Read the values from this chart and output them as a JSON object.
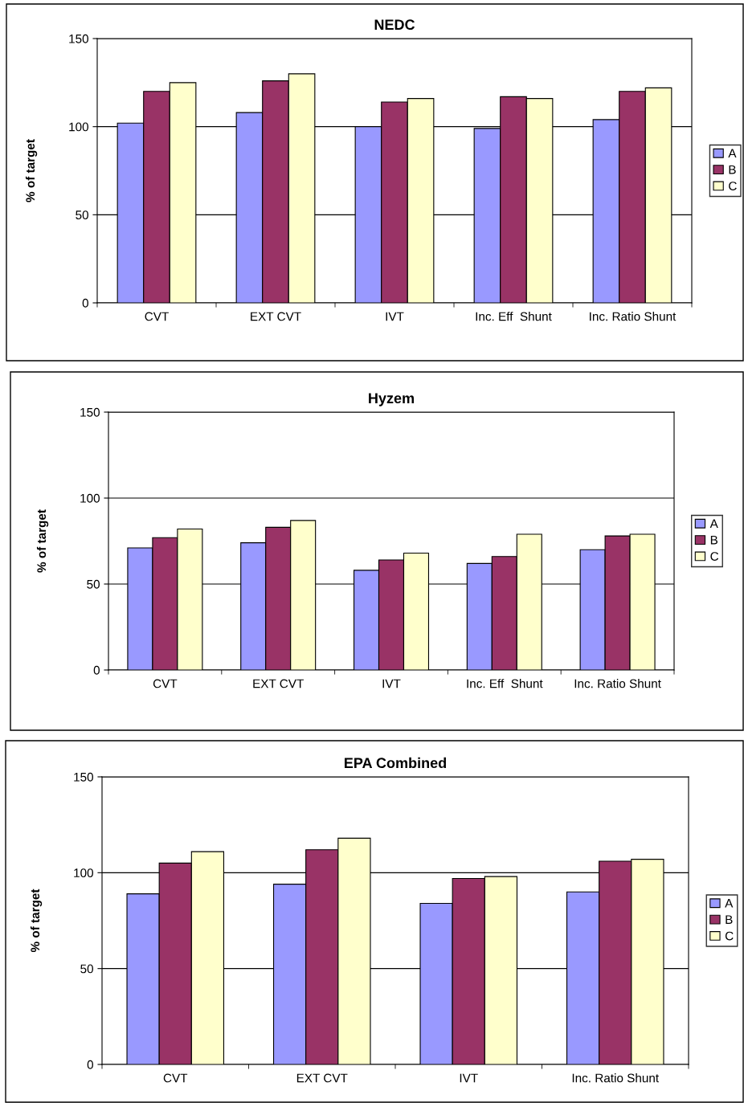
{
  "chart_data": [
    {
      "type": "bar",
      "title": "NEDC",
      "ylabel": "% of target",
      "categories": [
        "CVT",
        "EXT CVT",
        "IVT",
        "Inc. Eff  Shunt",
        "Inc. Ratio Shunt"
      ],
      "ylim": [
        0,
        150
      ],
      "yticks": [
        0,
        50,
        100,
        150
      ],
      "grid": "y",
      "legend": "right",
      "series": [
        {
          "name": "A",
          "color": "#9999ff",
          "values": [
            102,
            108,
            100,
            99,
            104
          ]
        },
        {
          "name": "B",
          "color": "#993366",
          "values": [
            120,
            126,
            114,
            117,
            120
          ]
        },
        {
          "name": "C",
          "color": "#ffffcc",
          "values": [
            125,
            130,
            116,
            116,
            122
          ]
        }
      ]
    },
    {
      "type": "bar",
      "title": "Hyzem",
      "ylabel": "% of target",
      "categories": [
        "CVT",
        "EXT CVT",
        "IVT",
        "Inc. Eff  Shunt",
        "Inc. Ratio Shunt"
      ],
      "ylim": [
        0,
        150
      ],
      "yticks": [
        0,
        50,
        100,
        150
      ],
      "grid": "y",
      "legend": "right",
      "series": [
        {
          "name": "A",
          "color": "#9999ff",
          "values": [
            71,
            74,
            58,
            62,
            70
          ]
        },
        {
          "name": "B",
          "color": "#993366",
          "values": [
            77,
            83,
            64,
            66,
            78
          ]
        },
        {
          "name": "C",
          "color": "#ffffcc",
          "values": [
            82,
            87,
            68,
            79,
            79
          ]
        }
      ]
    },
    {
      "type": "bar",
      "title": "EPA Combined",
      "ylabel": "% of target",
      "categories": [
        "CVT",
        "EXT CVT",
        "IVT",
        "Inc. Ratio Shunt"
      ],
      "ylim": [
        0,
        150
      ],
      "yticks": [
        0,
        50,
        100,
        150
      ],
      "grid": "y",
      "legend": "right",
      "series": [
        {
          "name": "A",
          "color": "#9999ff",
          "values": [
            89,
            94,
            84,
            90
          ]
        },
        {
          "name": "B",
          "color": "#993366",
          "values": [
            105,
            112,
            97,
            106
          ]
        },
        {
          "name": "C",
          "color": "#ffffcc",
          "values": [
            111,
            118,
            98,
            107
          ]
        }
      ]
    }
  ]
}
